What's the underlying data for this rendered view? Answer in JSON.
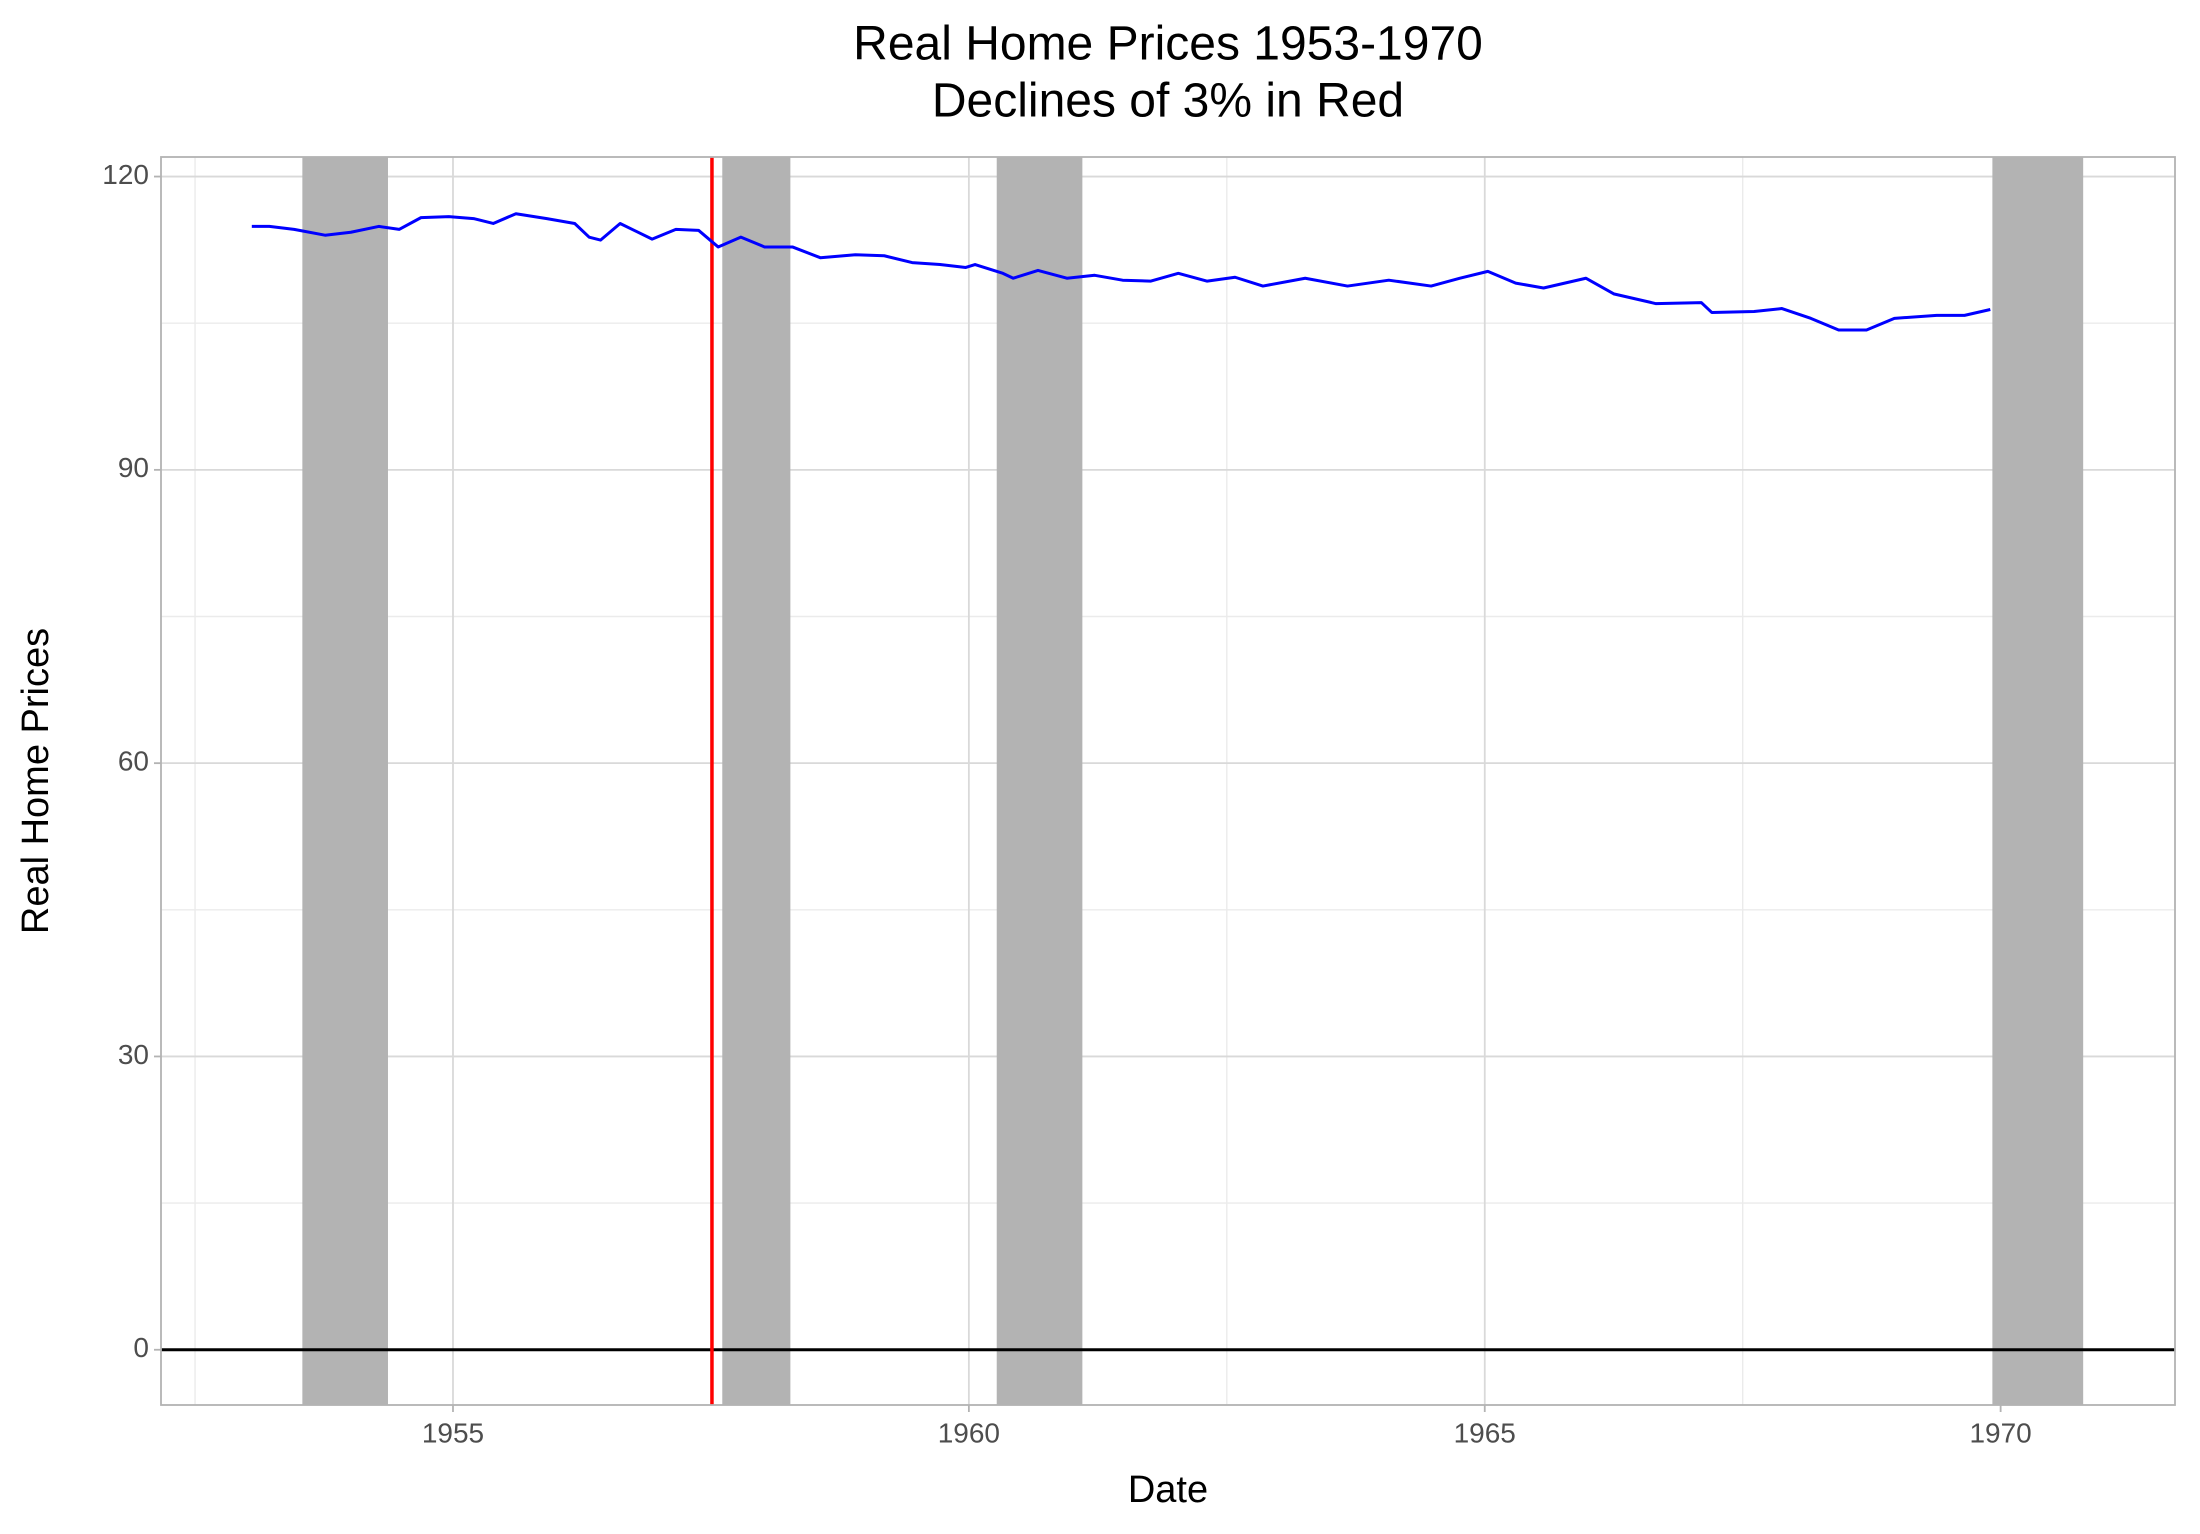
{
  "chart_data": {
    "type": "line",
    "title": "Real Home Prices 1953-1970",
    "subtitle": "Declines of 3% in Red",
    "x_label": "Date",
    "y_label": "Real Home Prices",
    "x": [
      1953.05,
      1953.22,
      1953.46,
      1953.76,
      1954.01,
      1954.28,
      1954.48,
      1954.69,
      1954.96,
      1955.2,
      1955.39,
      1955.61,
      1955.91,
      1956.18,
      1956.32,
      1956.43,
      1956.62,
      1956.93,
      1957.16,
      1957.38,
      1957.57,
      1957.79,
      1958.02,
      1958.29,
      1958.56,
      1958.9,
      1959.18,
      1959.45,
      1959.72,
      1959.97,
      1960.06,
      1960.33,
      1960.43,
      1960.67,
      1960.95,
      1961.22,
      1961.49,
      1961.76,
      1962.03,
      1962.31,
      1962.58,
      1962.85,
      1963.26,
      1963.67,
      1964.07,
      1964.48,
      1964.76,
      1965.03,
      1965.3,
      1965.57,
      1965.98,
      1966.25,
      1966.66,
      1967.1,
      1967.2,
      1967.61,
      1967.88,
      1968.16,
      1968.43,
      1968.7,
      1968.97,
      1969.38,
      1969.65,
      1969.9
    ],
    "values": [
      114.9,
      114.9,
      114.6,
      114.0,
      114.3,
      114.9,
      114.6,
      115.8,
      115.9,
      115.7,
      115.2,
      116.2,
      115.7,
      115.2,
      113.8,
      113.5,
      115.2,
      113.6,
      114.6,
      114.5,
      112.8,
      113.8,
      112.8,
      112.8,
      111.7,
      112.0,
      111.9,
      111.2,
      111.0,
      110.7,
      111.0,
      110.1,
      109.6,
      110.4,
      109.6,
      109.9,
      109.4,
      109.3,
      110.1,
      109.3,
      109.7,
      108.8,
      109.6,
      108.8,
      109.4,
      108.8,
      109.6,
      110.3,
      109.1,
      108.6,
      109.6,
      108.0,
      107.0,
      107.1,
      106.1,
      106.2,
      106.5,
      105.5,
      104.3,
      104.3,
      105.5,
      105.8,
      105.8,
      106.4
    ],
    "color": "#0000ff",
    "xlim": [
      1952.17,
      1971.69
    ],
    "ylim": [
      -5.65,
      122
    ],
    "xticks": [
      1955,
      1960,
      1965,
      1970
    ],
    "yticks": [
      0,
      30,
      60,
      90,
      120
    ],
    "grid": true,
    "shaded_regions": [
      [
        1953.54,
        1954.37
      ],
      [
        1957.61,
        1958.27
      ],
      [
        1960.27,
        1961.1
      ],
      [
        1969.92,
        1970.8
      ]
    ],
    "shade_color": "#b3b3b3",
    "vline": 1957.51,
    "vline_color": "#ff0000",
    "hline": 0,
    "hline_color": "#000000"
  }
}
